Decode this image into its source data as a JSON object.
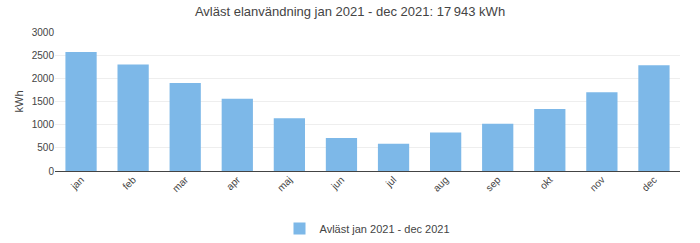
{
  "chart_data": {
    "type": "bar",
    "title": "Avläst elanvändning jan 2021 - dec 2021: 17 943 kWh",
    "categories": [
      "jan",
      "feb",
      "mar",
      "apr",
      "maj",
      "jun",
      "jul",
      "aug",
      "sep",
      "okt",
      "nov",
      "dec"
    ],
    "series": [
      {
        "name": "Avläst jan 2021 - dec 2021",
        "color": "#7db8e8",
        "values": [
          2570,
          2300,
          1900,
          1560,
          1140,
          710,
          590,
          830,
          1020,
          1340,
          1700,
          2280
        ]
      }
    ],
    "y_label": "kWh",
    "ylim": [
      0,
      3000
    ],
    "yticks": [
      0,
      500,
      1000,
      1500,
      2000,
      2500,
      3000
    ],
    "grid": true,
    "legend": "bottom"
  }
}
